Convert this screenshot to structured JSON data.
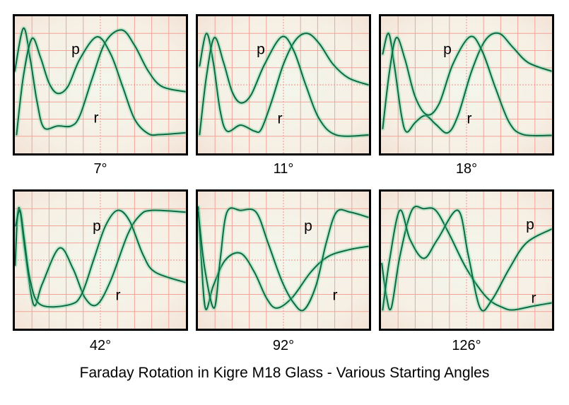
{
  "title": "Faraday Rotation in Kigre M18 Glass - Various Starting Angles",
  "colors": {
    "trace": "#0c6a45",
    "trace_glow": "#5fd79a",
    "grid": "#f2a49a",
    "border": "#000000"
  },
  "chart_data": [
    {
      "type": "line",
      "title": "7°",
      "grid": true,
      "xlim": [
        0,
        10
      ],
      "ylim": [
        0,
        8
      ],
      "series": [
        {
          "name": "r",
          "points": [
            [
              0,
              4.8
            ],
            [
              0.5,
              7.3
            ],
            [
              0.9,
              5.5
            ],
            [
              1.3,
              3
            ],
            [
              1.7,
              1.5
            ],
            [
              2.5,
              1.6
            ],
            [
              3.3,
              1.6
            ],
            [
              3.8,
              2.2
            ],
            [
              4.5,
              4.3
            ],
            [
              5.3,
              6.5
            ],
            [
              6.25,
              7.2
            ],
            [
              7,
              6.3
            ],
            [
              7.8,
              4.8
            ],
            [
              8.6,
              3.9
            ],
            [
              9.95,
              3.6
            ]
          ]
        },
        {
          "name": "p",
          "points": [
            [
              0.1,
              1.1
            ],
            [
              0.5,
              4.5
            ],
            [
              1.0,
              6.7
            ],
            [
              1.5,
              5.6
            ],
            [
              2.0,
              4.1
            ],
            [
              2.5,
              3.5
            ],
            [
              3.1,
              3.9
            ],
            [
              3.8,
              5.5
            ],
            [
              4.8,
              6.8
            ],
            [
              5.6,
              5.8
            ],
            [
              6.3,
              3.9
            ],
            [
              7,
              2.0
            ],
            [
              7.8,
              1.15
            ],
            [
              8.5,
              1.1
            ],
            [
              9.95,
              1.2
            ]
          ]
        }
      ]
    },
    {
      "type": "line",
      "title": "11°",
      "grid": true,
      "xlim": [
        0,
        10
      ],
      "ylim": [
        0,
        8
      ],
      "series": [
        {
          "name": "r",
          "points": [
            [
              0.1,
              5.1
            ],
            [
              0.5,
              7.0
            ],
            [
              0.9,
              5.3
            ],
            [
              1.3,
              2.5
            ],
            [
              1.7,
              1.3
            ],
            [
              2.5,
              1.65
            ],
            [
              3.3,
              1.3
            ],
            [
              3.7,
              1.4
            ],
            [
              4.3,
              3
            ],
            [
              5,
              5.2
            ],
            [
              5.7,
              6.6
            ],
            [
              6.4,
              7.0
            ],
            [
              7.1,
              6.4
            ],
            [
              7.9,
              5.2
            ],
            [
              8.8,
              4.4
            ],
            [
              9.95,
              4.0
            ]
          ]
        },
        {
          "name": "p",
          "points": [
            [
              0.1,
              1.1
            ],
            [
              0.5,
              4.5
            ],
            [
              0.96,
              6.75
            ],
            [
              1.5,
              5.3
            ],
            [
              2,
              3.6
            ],
            [
              2.5,
              2.95
            ],
            [
              3.1,
              3.4
            ],
            [
              3.9,
              5.2
            ],
            [
              4.9,
              6.8
            ],
            [
              5.6,
              6.0
            ],
            [
              6.3,
              4.0
            ],
            [
              7.1,
              2.0
            ],
            [
              8.1,
              1.07
            ],
            [
              9.95,
              1.07
            ]
          ]
        }
      ]
    },
    {
      "type": "line",
      "title": "18°",
      "grid": true,
      "xlim": [
        0,
        10
      ],
      "ylim": [
        0,
        8
      ],
      "series": [
        {
          "name": "r",
          "points": [
            [
              0.1,
              5.8
            ],
            [
              0.45,
              7.0
            ],
            [
              0.8,
              5.0
            ],
            [
              1.2,
              2.2
            ],
            [
              1.5,
              1.25
            ],
            [
              2,
              1.8
            ],
            [
              2.6,
              2.2
            ],
            [
              3.2,
              1.7
            ],
            [
              3.9,
              1.2
            ],
            [
              4.5,
              2.2
            ],
            [
              5.3,
              4.8
            ],
            [
              6.1,
              6.6
            ],
            [
              6.9,
              7.0
            ],
            [
              7.7,
              6.2
            ],
            [
              8.6,
              5.3
            ],
            [
              9.95,
              4.8
            ]
          ]
        },
        {
          "name": "p",
          "points": [
            [
              0.1,
              1.45
            ],
            [
              0.5,
              4.8
            ],
            [
              0.9,
              6.75
            ],
            [
              1.4,
              5.5
            ],
            [
              2,
              3.3
            ],
            [
              2.7,
              2.25
            ],
            [
              3.4,
              2.9
            ],
            [
              4.2,
              5.2
            ],
            [
              5.2,
              6.8
            ],
            [
              5.9,
              6.0
            ],
            [
              6.7,
              3.8
            ],
            [
              7.5,
              1.8
            ],
            [
              8.3,
              1.1
            ],
            [
              9.95,
              1.05
            ]
          ]
        }
      ]
    },
    {
      "type": "line",
      "title": "42°",
      "grid": true,
      "xlim": [
        0,
        10
      ],
      "ylim": [
        0,
        8
      ],
      "series": [
        {
          "name": "r",
          "points": [
            [
              0.02,
              3.7
            ],
            [
              0.15,
              6.5
            ],
            [
              0.3,
              6.9
            ],
            [
              0.6,
              4.5
            ],
            [
              1.1,
              1.4
            ],
            [
              1.6,
              2.6
            ],
            [
              2.6,
              4.7
            ],
            [
              3.4,
              3.5
            ],
            [
              4.1,
              1.8
            ],
            [
              4.8,
              1.4
            ],
            [
              5.6,
              2.8
            ],
            [
              6.6,
              5.5
            ],
            [
              7.3,
              6.6
            ],
            [
              8.0,
              6.9
            ],
            [
              9.95,
              6.8
            ]
          ]
        },
        {
          "name": "p",
          "points": [
            [
              0.05,
              6.0
            ],
            [
              0.3,
              6.9
            ],
            [
              0.55,
              5.2
            ],
            [
              0.9,
              2.8
            ],
            [
              1.5,
              1.4
            ],
            [
              3.2,
              1.4
            ],
            [
              3.9,
              2.0
            ],
            [
              4.6,
              4.0
            ],
            [
              5.3,
              6.0
            ],
            [
              6.0,
              6.9
            ],
            [
              6.7,
              6.3
            ],
            [
              7.5,
              4.3
            ],
            [
              8.2,
              3.3
            ],
            [
              9.95,
              2.7
            ]
          ]
        }
      ]
    },
    {
      "type": "line",
      "title": "92°",
      "grid": true,
      "xlim": [
        0,
        10
      ],
      "ylim": [
        0,
        8
      ],
      "series": [
        {
          "name": "r",
          "points": [
            [
              0.02,
              7.1
            ],
            [
              0.2,
              4
            ],
            [
              0.45,
              1.15
            ],
            [
              0.9,
              2.5
            ],
            [
              1.6,
              4
            ],
            [
              2.5,
              4.4
            ],
            [
              3.3,
              3.3
            ],
            [
              4,
              1.8
            ],
            [
              4.6,
              1.2
            ],
            [
              5.5,
              1.8
            ],
            [
              6.6,
              3.3
            ],
            [
              7.6,
              4.2
            ],
            [
              8.8,
              4.6
            ],
            [
              9.95,
              4.8
            ]
          ]
        },
        {
          "name": "p",
          "points": [
            [
              0.02,
              6.8
            ],
            [
              0.4,
              3.5
            ],
            [
              0.95,
              1.2
            ],
            [
              1.3,
              4
            ],
            [
              1.7,
              6.8
            ],
            [
              2.5,
              6.9
            ],
            [
              3.4,
              6.8
            ],
            [
              4.1,
              5
            ],
            [
              4.9,
              2.8
            ],
            [
              5.6,
              1.5
            ],
            [
              6.2,
              1.1
            ],
            [
              6.9,
              2.5
            ],
            [
              7.5,
              5
            ],
            [
              8.1,
              6.8
            ],
            [
              8.9,
              6.8
            ],
            [
              9.95,
              6.5
            ]
          ]
        }
      ]
    },
    {
      "type": "line",
      "title": "126°",
      "grid": true,
      "xlim": [
        0,
        10
      ],
      "ylim": [
        0,
        8
      ],
      "series": [
        {
          "name": "r",
          "points": [
            [
              0.05,
              3.8
            ],
            [
              0.3,
              2
            ],
            [
              0.6,
              1.2
            ],
            [
              1.1,
              4.2
            ],
            [
              1.8,
              6.9
            ],
            [
              2.5,
              7.0
            ],
            [
              3.2,
              6.9
            ],
            [
              4,
              5.5
            ],
            [
              5,
              3.5
            ],
            [
              6.2,
              1.8
            ],
            [
              7.2,
              1.2
            ],
            [
              7.8,
              1.1
            ],
            [
              8.8,
              1.3
            ],
            [
              9.95,
              1.5
            ]
          ]
        },
        {
          "name": "p",
          "points": [
            [
              0.1,
              1.1
            ],
            [
              0.5,
              4
            ],
            [
              1.1,
              6.9
            ],
            [
              1.7,
              5.2
            ],
            [
              2.5,
              4.1
            ],
            [
              3.3,
              5.2
            ],
            [
              4.5,
              6.9
            ],
            [
              5.1,
              4.3
            ],
            [
              5.8,
              1.2
            ],
            [
              6.5,
              1.7
            ],
            [
              7.5,
              3.5
            ],
            [
              8.5,
              5.0
            ],
            [
              9.95,
              5.8
            ]
          ]
        }
      ]
    }
  ]
}
